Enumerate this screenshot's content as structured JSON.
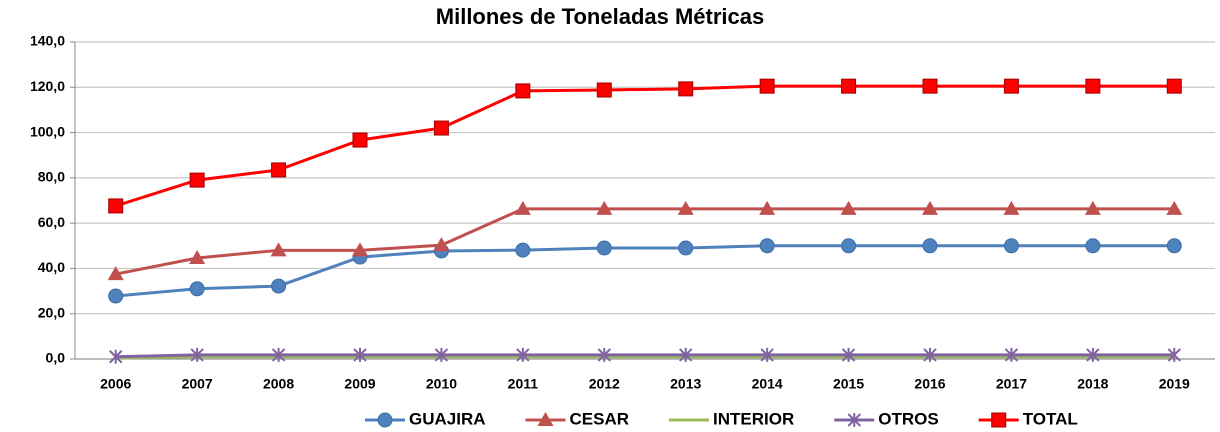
{
  "chart_data": {
    "type": "line",
    "title": "Millones de Toneladas Métricas",
    "categories": [
      "2006",
      "2007",
      "2008",
      "2009",
      "2010",
      "2011",
      "2012",
      "2013",
      "2014",
      "2015",
      "2016",
      "2017",
      "2018",
      "2019"
    ],
    "series": [
      {
        "name": "GUAJIRA",
        "color": "#4f81bd",
        "marker": "circle",
        "values": [
          27.8,
          31.0,
          32.2,
          45.0,
          47.7,
          48.1,
          49.0,
          49.0,
          50.0,
          50.0,
          50.0,
          50.0,
          50.0,
          50.0
        ]
      },
      {
        "name": "CESAR",
        "color": "#c0504d",
        "marker": "triangle",
        "values": [
          37.5,
          44.6,
          48.0,
          48.0,
          50.3,
          66.3,
          66.3,
          66.3,
          66.3,
          66.3,
          66.3,
          66.3,
          66.3,
          66.3
        ]
      },
      {
        "name": "INTERIOR",
        "color": "#9bbb59",
        "marker": "none",
        "values": [
          0.5,
          1.0,
          1.0,
          1.0,
          1.0,
          1.0,
          1.0,
          1.0,
          1.0,
          1.0,
          1.0,
          1.0,
          1.0,
          1.0
        ]
      },
      {
        "name": "OTROS",
        "color": "#8064a2",
        "marker": "x",
        "values": [
          1.0,
          1.8,
          1.8,
          1.8,
          1.8,
          1.8,
          1.8,
          1.8,
          1.8,
          1.8,
          1.8,
          1.8,
          1.8,
          1.8
        ]
      },
      {
        "name": "TOTAL",
        "color": "#ff0000",
        "marker": "square",
        "values": [
          67.6,
          79.0,
          83.5,
          96.7,
          102.0,
          118.4,
          118.8,
          119.3,
          120.5,
          120.5,
          120.5,
          120.5,
          120.5,
          120.5
        ]
      }
    ],
    "ylim": [
      0,
      140
    ],
    "yticks": [
      {
        "value": 0,
        "label": "0,0"
      },
      {
        "value": 20,
        "label": "20,0"
      },
      {
        "value": 40,
        "label": "40,0"
      },
      {
        "value": 60,
        "label": "60,0"
      },
      {
        "value": 80,
        "label": "80,0"
      },
      {
        "value": 100,
        "label": "100,0"
      },
      {
        "value": 120,
        "label": "120,0"
      },
      {
        "value": 140,
        "label": "140,0"
      }
    ],
    "grid": true,
    "legend": "bottom"
  }
}
